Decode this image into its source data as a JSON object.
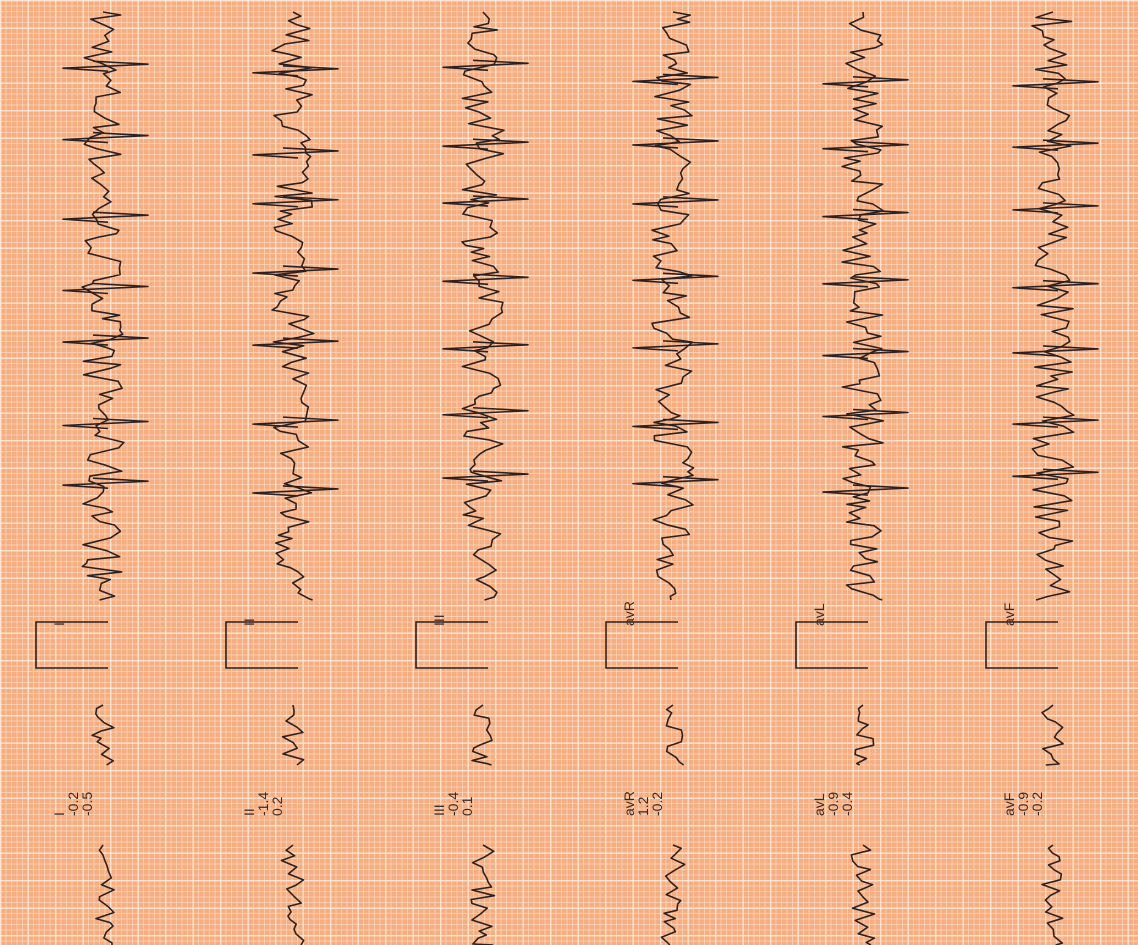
{
  "leads": [
    {
      "name": "I",
      "values": [
        -0.2,
        -0.5
      ]
    },
    {
      "name": "II",
      "values": [
        -1.4,
        0.2
      ]
    },
    {
      "name": "III",
      "values": [
        -0.4,
        0.1
      ]
    },
    {
      "name": "avR",
      "values": [
        1.2,
        -0.2
      ]
    },
    {
      "name": "avL",
      "values": [
        -0.9,
        -0.4
      ]
    },
    {
      "name": "avF",
      "values": [
        -0.9,
        -0.2
      ]
    }
  ]
}
